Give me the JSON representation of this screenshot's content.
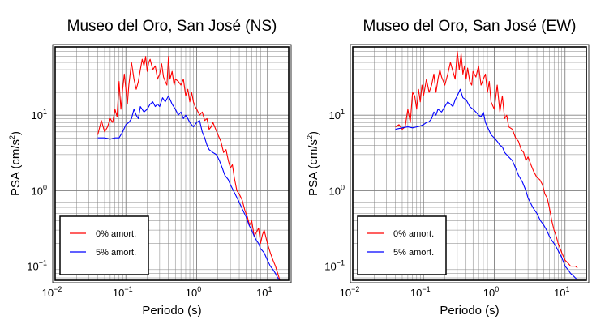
{
  "colors": {
    "red": "#ff0000",
    "blue": "#0000ff",
    "frame": "#000000",
    "grid": "#808080",
    "background": "#ffffff"
  },
  "chart_data": [
    {
      "type": "line",
      "title": "Museo del Oro, San José (NS)",
      "xlabel": "Periodo (s)",
      "ylabel_main": "PSA (cm/s",
      "ylabel_sup": "2",
      "ylabel_close": ")",
      "x_scale": "log",
      "y_scale": "log",
      "xlim": [
        0.01,
        20
      ],
      "ylim": [
        0.065,
        80
      ],
      "x_ticks": [
        {
          "base": "10",
          "exp": "−2",
          "value": 0.01
        },
        {
          "base": "10",
          "exp": "−1",
          "value": 0.1
        },
        {
          "base": "10",
          "exp": "0",
          "value": 1
        },
        {
          "base": "10",
          "exp": "1",
          "value": 10
        }
      ],
      "y_ticks": [
        {
          "base": "10",
          "exp": "−1",
          "value": 0.1
        },
        {
          "base": "10",
          "exp": "0",
          "value": 1
        },
        {
          "base": "10",
          "exp": "1",
          "value": 10
        }
      ],
      "grid": true,
      "legend_position": "bottom-left",
      "series": [
        {
          "name": "0% amort.",
          "color": "red",
          "x": [
            0.04,
            0.045,
            0.05,
            0.055,
            0.06,
            0.065,
            0.07,
            0.075,
            0.08,
            0.085,
            0.09,
            0.095,
            0.1,
            0.105,
            0.11,
            0.12,
            0.13,
            0.14,
            0.15,
            0.16,
            0.17,
            0.18,
            0.19,
            0.2,
            0.21,
            0.22,
            0.24,
            0.26,
            0.28,
            0.3,
            0.32,
            0.34,
            0.36,
            0.38,
            0.4,
            0.42,
            0.45,
            0.48,
            0.5,
            0.55,
            0.6,
            0.65,
            0.7,
            0.75,
            0.8,
            0.85,
            0.9,
            0.95,
            1.0,
            1.1,
            1.2,
            1.3,
            1.4,
            1.5,
            1.6,
            1.7,
            1.8,
            2.0,
            2.2,
            2.4,
            2.6,
            2.8,
            3.0,
            3.2,
            3.4,
            3.7,
            4.0,
            4.4,
            4.8,
            5.2,
            5.6,
            6.0,
            6.5,
            7.0,
            7.5,
            8.0,
            8.5,
            9.0,
            10.0,
            11.0,
            12.0,
            13.0,
            14.0,
            15.0
          ],
          "y": [
            5.5,
            8.5,
            6,
            7,
            9,
            8,
            12,
            9.5,
            28,
            12,
            22,
            35,
            22,
            14,
            25,
            50,
            30,
            22,
            28,
            40,
            55,
            45,
            60,
            38,
            50,
            55,
            40,
            45,
            30,
            35,
            48,
            32,
            28,
            25,
            60,
            30,
            38,
            25,
            30,
            28,
            25,
            30,
            18,
            22,
            15,
            20,
            15,
            13,
            12,
            10,
            11,
            8.5,
            9,
            6.5,
            7,
            8,
            7,
            5.5,
            4.5,
            3.2,
            3.5,
            2.5,
            2.0,
            2.2,
            1.5,
            1.0,
            0.9,
            0.75,
            0.55,
            0.45,
            0.35,
            0.4,
            0.25,
            0.28,
            0.32,
            0.2,
            0.26,
            0.3,
            0.2,
            0.15,
            0.12,
            0.1,
            0.08,
            0.065
          ]
        },
        {
          "name": "5% amort.",
          "color": "blue",
          "x": [
            0.04,
            0.05,
            0.06,
            0.07,
            0.08,
            0.09,
            0.1,
            0.11,
            0.12,
            0.13,
            0.14,
            0.15,
            0.16,
            0.18,
            0.2,
            0.22,
            0.24,
            0.26,
            0.28,
            0.3,
            0.33,
            0.36,
            0.4,
            0.45,
            0.5,
            0.55,
            0.6,
            0.65,
            0.7,
            0.75,
            0.8,
            0.9,
            1.0,
            1.1,
            1.2,
            1.3,
            1.4,
            1.5,
            1.7,
            1.9,
            2.1,
            2.3,
            2.5,
            2.8,
            3.0,
            3.5,
            4.0,
            4.5,
            5.0,
            5.5,
            6.0,
            6.5,
            7.0,
            7.5,
            8.0,
            8.5,
            9.0,
            10.0,
            11.0,
            12.0,
            13.0,
            14.0,
            15.0
          ],
          "y": [
            5,
            5,
            4.8,
            5,
            5,
            6,
            7.5,
            8,
            9,
            12,
            10,
            9,
            13,
            11,
            12,
            14,
            15,
            13,
            14,
            13,
            17,
            15,
            18,
            14,
            12,
            10,
            11,
            9,
            10,
            9,
            8,
            7,
            8,
            8.5,
            6,
            5,
            4,
            3.5,
            3.2,
            3.0,
            2.5,
            2.0,
            1.6,
            1.4,
            1.2,
            0.9,
            0.7,
            0.55,
            0.45,
            0.35,
            0.3,
            0.25,
            0.22,
            0.2,
            0.17,
            0.16,
            0.15,
            0.12,
            0.1,
            0.09,
            0.08,
            0.07,
            0.065
          ]
        }
      ],
      "legend": [
        {
          "label": "0% amort.",
          "color": "red"
        },
        {
          "label": "5% amort.",
          "color": "blue"
        }
      ]
    },
    {
      "type": "line",
      "title": "Museo del Oro, San José (EW)",
      "xlabel": "Periodo (s)",
      "ylabel_main": "PSA (cm/s",
      "ylabel_sup": "2",
      "ylabel_close": ")",
      "x_scale": "log",
      "y_scale": "log",
      "xlim": [
        0.01,
        20
      ],
      "ylim": [
        0.065,
        80
      ],
      "x_ticks": [
        {
          "base": "10",
          "exp": "−2",
          "value": 0.01
        },
        {
          "base": "10",
          "exp": "−1",
          "value": 0.1
        },
        {
          "base": "10",
          "exp": "0",
          "value": 1
        },
        {
          "base": "10",
          "exp": "1",
          "value": 10
        }
      ],
      "y_ticks": [
        {
          "base": "10",
          "exp": "−1",
          "value": 0.1
        },
        {
          "base": "10",
          "exp": "0",
          "value": 1
        },
        {
          "base": "10",
          "exp": "1",
          "value": 10
        }
      ],
      "grid": true,
      "legend_position": "bottom-left",
      "series": [
        {
          "name": "0% amort.",
          "color": "red",
          "x": [
            0.04,
            0.045,
            0.05,
            0.055,
            0.06,
            0.065,
            0.07,
            0.075,
            0.08,
            0.085,
            0.09,
            0.095,
            0.1,
            0.11,
            0.12,
            0.13,
            0.14,
            0.15,
            0.16,
            0.17,
            0.18,
            0.2,
            0.22,
            0.24,
            0.26,
            0.28,
            0.3,
            0.32,
            0.34,
            0.36,
            0.38,
            0.4,
            0.42,
            0.45,
            0.48,
            0.5,
            0.55,
            0.6,
            0.65,
            0.7,
            0.75,
            0.8,
            0.85,
            0.9,
            1.0,
            1.1,
            1.2,
            1.3,
            1.4,
            1.5,
            1.6,
            1.8,
            2.0,
            2.2,
            2.4,
            2.6,
            2.8,
            3.0,
            3.3,
            3.6,
            4.0,
            4.4,
            4.8,
            5.2,
            5.6,
            6.0,
            6.5,
            7.0,
            7.5,
            8.0,
            9.0,
            10.0,
            11.0,
            12.0,
            13.0,
            14.0,
            15.0
          ],
          "y": [
            7,
            7.5,
            6.5,
            7,
            12,
            8,
            20,
            18,
            12,
            22,
            15,
            25,
            18,
            30,
            20,
            25,
            35,
            20,
            30,
            40,
            32,
            25,
            35,
            50,
            38,
            30,
            70,
            40,
            65,
            35,
            45,
            30,
            42,
            28,
            25,
            38,
            32,
            45,
            25,
            30,
            35,
            20,
            28,
            15,
            12,
            25,
            11,
            18,
            9,
            10,
            7,
            6.5,
            5,
            4.5,
            3.5,
            3.2,
            2.5,
            2.8,
            2.2,
            1.8,
            1.5,
            1.4,
            1.2,
            0.9,
            0.8,
            0.6,
            0.4,
            0.3,
            0.25,
            0.2,
            0.15,
            0.12,
            0.11,
            0.1,
            0.1,
            0.1,
            0.095
          ]
        },
        {
          "name": "5% amort.",
          "color": "blue",
          "x": [
            0.04,
            0.05,
            0.06,
            0.07,
            0.08,
            0.09,
            0.1,
            0.11,
            0.12,
            0.13,
            0.14,
            0.15,
            0.16,
            0.18,
            0.2,
            0.22,
            0.24,
            0.26,
            0.28,
            0.3,
            0.33,
            0.36,
            0.4,
            0.45,
            0.5,
            0.55,
            0.6,
            0.65,
            0.7,
            0.75,
            0.8,
            0.9,
            1.0,
            1.1,
            1.2,
            1.3,
            1.4,
            1.6,
            1.8,
            2.0,
            2.2,
            2.5,
            2.8,
            3.0,
            3.5,
            4.0,
            4.5,
            5.0,
            5.5,
            6.0,
            6.5,
            7.0,
            7.5,
            8.0,
            9.0,
            10.0,
            11.0,
            12.0,
            13.0,
            14.0,
            15.0
          ],
          "y": [
            6.5,
            6.8,
            7,
            6.8,
            7,
            7.2,
            7.5,
            8,
            8.2,
            9,
            11,
            10,
            12,
            11,
            13,
            15,
            14,
            13,
            16,
            18,
            22,
            17,
            16,
            13,
            12,
            11,
            10,
            9.5,
            11,
            8,
            7,
            5.5,
            5,
            4.5,
            4.0,
            3.8,
            3.2,
            2.8,
            2.5,
            2.0,
            1.6,
            1.3,
            1.0,
            0.8,
            0.6,
            0.5,
            0.4,
            0.35,
            0.3,
            0.25,
            0.22,
            0.2,
            0.18,
            0.16,
            0.13,
            0.1,
            0.09,
            0.08,
            0.075,
            0.07,
            0.065
          ]
        }
      ],
      "legend": [
        {
          "label": "0% amort.",
          "color": "red"
        },
        {
          "label": "5% amort.",
          "color": "blue"
        }
      ]
    }
  ]
}
